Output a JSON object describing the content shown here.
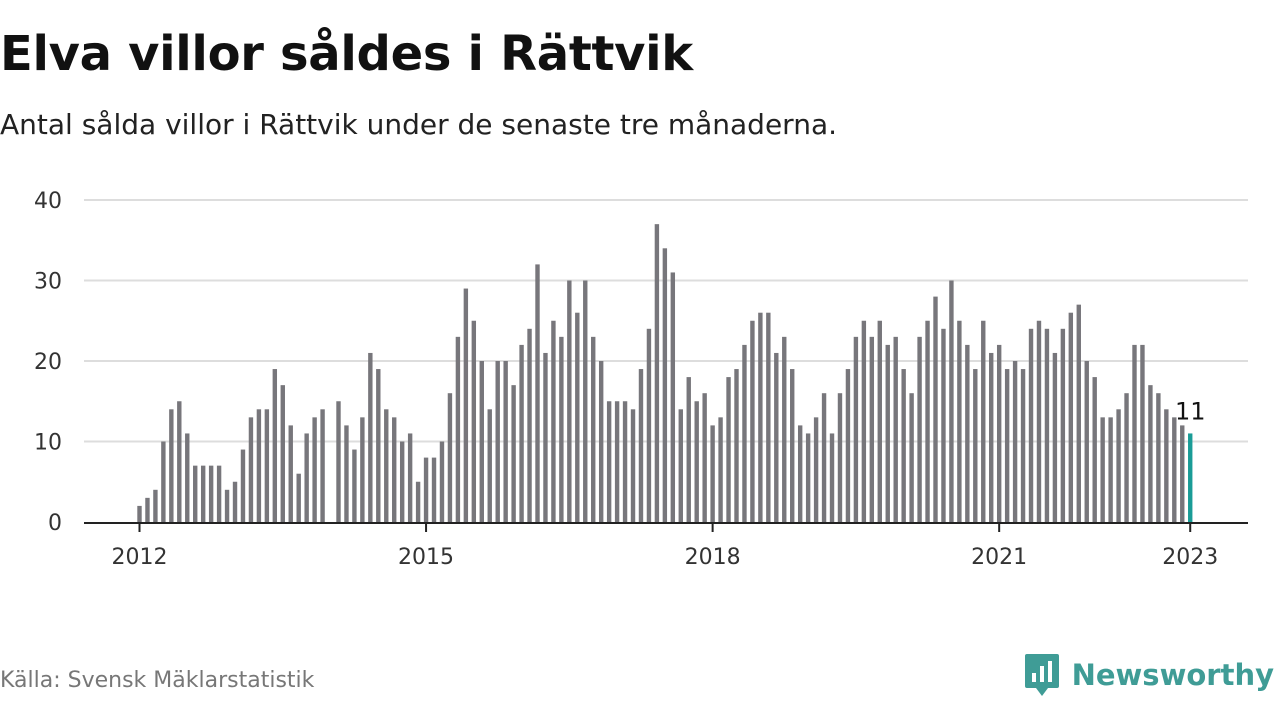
{
  "header": {
    "title": "Elva villor såldes i Rättvik",
    "subtitle": "Antal sålda villor i Rättvik under de senaste tre månaderna."
  },
  "footer": {
    "source": "Källa: Svensk Mäklarstatistik",
    "brand": "Newsworthy",
    "brand_icon": "newsworthy-logo-icon"
  },
  "colors": {
    "bar": "#77767b",
    "highlight": "#1a9c97",
    "grid": "#dddddd",
    "axis": "#222222",
    "brand": "#3f9c96"
  },
  "chart_data": {
    "type": "bar",
    "title": "Elva villor såldes i Rättvik",
    "subtitle": "Antal sålda villor i Rättvik under de senaste tre månaderna.",
    "xlabel": "",
    "ylabel": "",
    "ylim": [
      0,
      40
    ],
    "yticks": [
      0,
      10,
      20,
      30,
      40
    ],
    "xticks": [
      "2012",
      "2015",
      "2018",
      "2021",
      "2023"
    ],
    "grid": true,
    "legend": "none",
    "x_start": "2012-01",
    "x_end": "2023-01",
    "values": [
      2,
      3,
      4,
      10,
      14,
      15,
      11,
      7,
      7,
      7,
      7,
      4,
      5,
      9,
      13,
      14,
      14,
      19,
      17,
      12,
      6,
      11,
      13,
      14,
      null,
      15,
      12,
      9,
      13,
      21,
      19,
      14,
      13,
      10,
      11,
      5,
      8,
      8,
      10,
      16,
      23,
      29,
      25,
      20,
      14,
      20,
      20,
      17,
      22,
      24,
      32,
      21,
      25,
      23,
      30,
      26,
      30,
      23,
      20,
      15,
      15,
      15,
      14,
      19,
      24,
      37,
      34,
      31,
      14,
      18,
      15,
      16,
      12,
      13,
      18,
      19,
      22,
      25,
      26,
      26,
      21,
      23,
      19,
      12,
      11,
      13,
      16,
      11,
      16,
      19,
      23,
      25,
      23,
      25,
      22,
      23,
      19,
      16,
      23,
      25,
      28,
      24,
      30,
      25,
      22,
      19,
      25,
      21,
      22,
      19,
      20,
      19,
      24,
      25,
      24,
      21,
      24,
      26,
      27,
      20,
      18,
      13,
      13,
      14,
      16,
      22,
      22,
      17,
      16,
      14,
      13,
      12,
      11
    ],
    "highlight_last": true,
    "annotation": "11"
  }
}
